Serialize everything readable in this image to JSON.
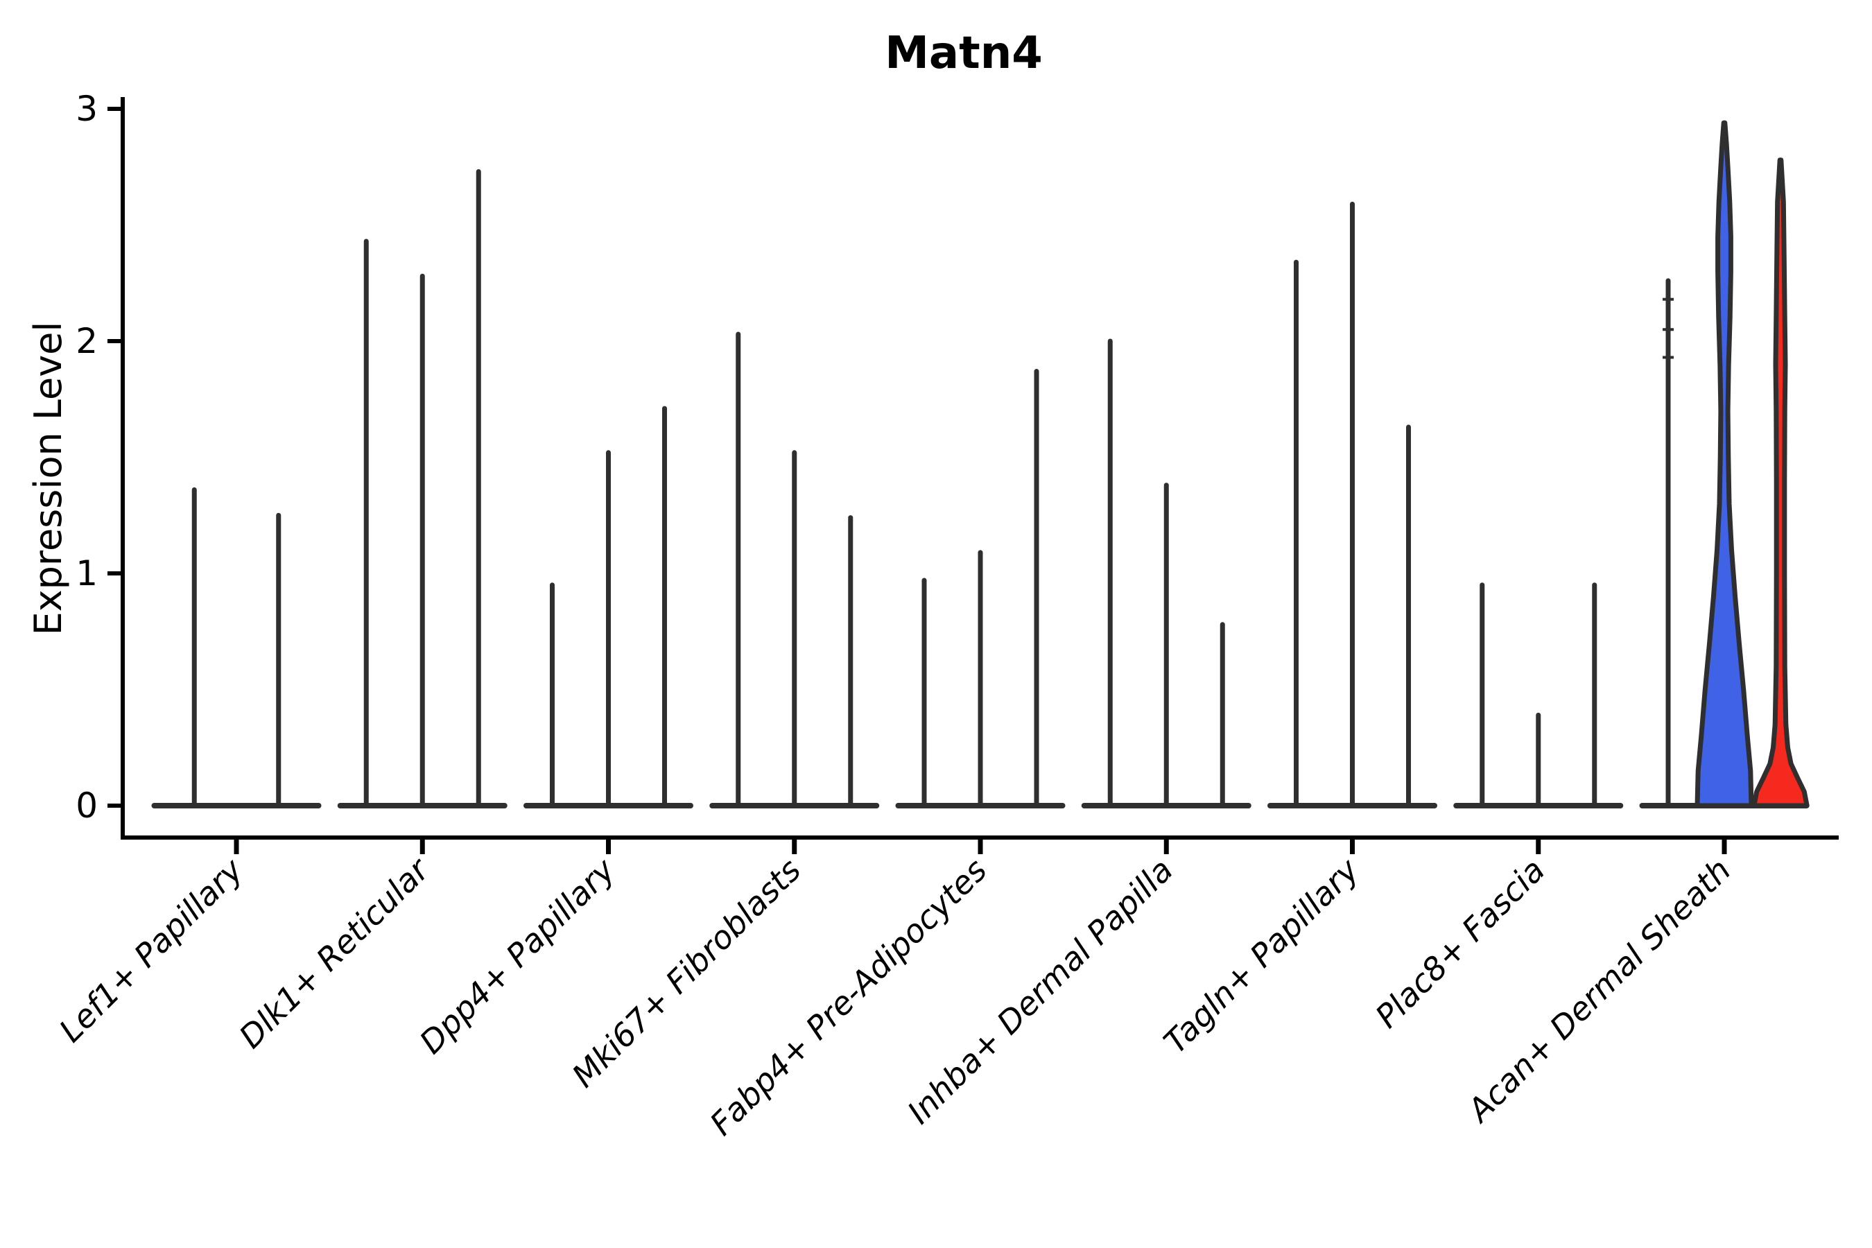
{
  "chart_data": {
    "type": "violin",
    "title": "Matn4",
    "ylabel": "Expression Level",
    "xlabel": "",
    "ylim": [
      -0.15,
      3.05
    ],
    "yticks": [
      0,
      1,
      2,
      3
    ],
    "grid": false,
    "legend_position": "none",
    "categories": [
      "Lef1+ Papillary",
      "Dlk1+ Reticular",
      "Dpp4+ Papillary",
      "Mki67+ Fibroblasts",
      "Fabp4+ Pre-Adipocytes",
      "Inhba+ Dermal Papilla",
      "Tagln+ Papillary",
      "Plac8+ Fascia",
      "Acan+ Dermal Sheath"
    ],
    "groups": [
      {
        "category": "Lef1+ Papillary",
        "violins": [
          {
            "max": 1.36,
            "color": "dark"
          },
          {
            "max": 1.25,
            "color": "dark"
          }
        ]
      },
      {
        "category": "Dlk1+ Reticular",
        "violins": [
          {
            "max": 2.43,
            "color": "dark"
          },
          {
            "max": 2.28,
            "color": "dark"
          },
          {
            "max": 2.73,
            "color": "dark"
          }
        ]
      },
      {
        "category": "Dpp4+ Papillary",
        "violins": [
          {
            "max": 0.95,
            "color": "dark"
          },
          {
            "max": 1.52,
            "color": "dark"
          },
          {
            "max": 1.71,
            "color": "dark"
          }
        ]
      },
      {
        "category": "Mki67+ Fibroblasts",
        "violins": [
          {
            "max": 2.03,
            "color": "dark"
          },
          {
            "max": 1.52,
            "color": "dark"
          },
          {
            "max": 1.24,
            "color": "dark"
          }
        ]
      },
      {
        "category": "Fabp4+ Pre-Adipocytes",
        "violins": [
          {
            "max": 0.97,
            "color": "dark"
          },
          {
            "max": 1.09,
            "color": "dark"
          },
          {
            "max": 1.87,
            "color": "dark"
          }
        ]
      },
      {
        "category": "Inhba+ Dermal Papilla",
        "violins": [
          {
            "max": 2.0,
            "color": "dark"
          },
          {
            "max": 1.38,
            "color": "dark"
          },
          {
            "max": 0.78,
            "color": "dark"
          }
        ]
      },
      {
        "category": "Tagln+ Papillary",
        "violins": [
          {
            "max": 2.34,
            "color": "dark"
          },
          {
            "max": 2.59,
            "color": "dark"
          },
          {
            "max": 1.63,
            "color": "dark"
          }
        ]
      },
      {
        "category": "Plac8+ Fascia",
        "violins": [
          {
            "max": 0.95,
            "color": "dark"
          },
          {
            "max": 0.39,
            "color": "dark"
          },
          {
            "max": 0.95,
            "color": "dark"
          }
        ]
      },
      {
        "category": "Acan+ Dermal Sheath",
        "violins": [
          {
            "max": 2.26,
            "color": "dark",
            "marks": [
              2.18,
              2.05,
              1.93
            ]
          },
          {
            "max": 2.94,
            "color": "blue",
            "profile": [
              [
                0,
                1
              ],
              [
                0.15,
                0.97
              ],
              [
                0.3,
                0.85
              ],
              [
                0.5,
                0.71
              ],
              [
                0.7,
                0.55
              ],
              [
                0.9,
                0.4
              ],
              [
                1.1,
                0.27
              ],
              [
                1.3,
                0.18
              ],
              [
                1.5,
                0.15
              ],
              [
                1.7,
                0.13
              ],
              [
                1.9,
                0.16
              ],
              [
                2.1,
                0.21
              ],
              [
                2.3,
                0.24
              ],
              [
                2.45,
                0.24
              ],
              [
                2.6,
                0.2
              ],
              [
                2.75,
                0.13
              ],
              [
                2.85,
                0.08
              ],
              [
                2.94,
                0.02
              ]
            ]
          },
          {
            "max": 2.78,
            "color": "red",
            "profile": [
              [
                0,
                0.98
              ],
              [
                0.06,
                0.88
              ],
              [
                0.12,
                0.63
              ],
              [
                0.18,
                0.39
              ],
              [
                0.25,
                0.27
              ],
              [
                0.35,
                0.2
              ],
              [
                0.6,
                0.16
              ],
              [
                1.0,
                0.15
              ],
              [
                1.4,
                0.15
              ],
              [
                1.7,
                0.16
              ],
              [
                1.9,
                0.18
              ],
              [
                2.1,
                0.16
              ],
              [
                2.4,
                0.13
              ],
              [
                2.6,
                0.11
              ],
              [
                2.78,
                0.02
              ]
            ]
          }
        ]
      }
    ],
    "colors": {
      "violin_outline": "#2f2f2f",
      "dark": "#2f2f2f",
      "blue": "#3f62e6",
      "red": "#f5291d",
      "axis": "#000000"
    }
  }
}
